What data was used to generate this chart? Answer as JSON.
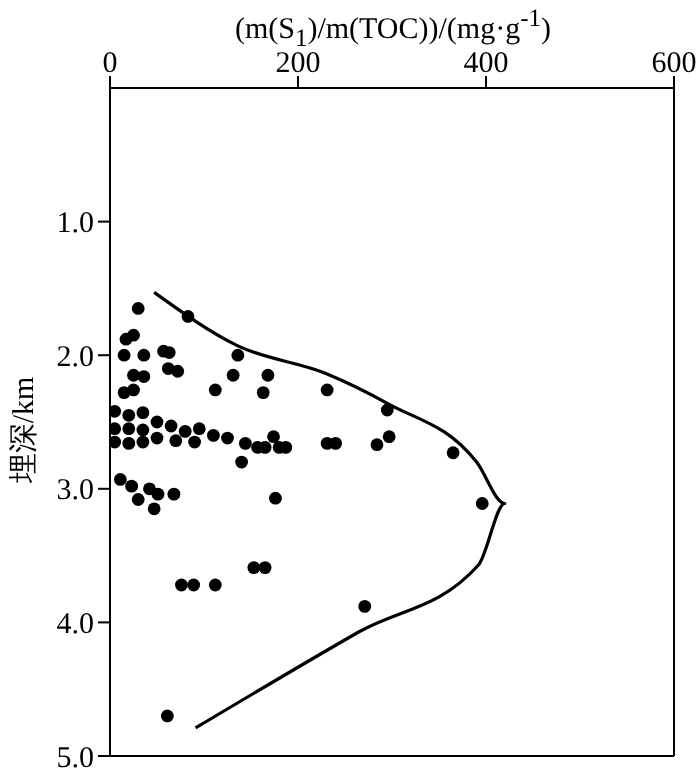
{
  "chart_data": {
    "type": "scatter",
    "xlabel": "(m(S$_{1}$)/m(TOC))/(mg·g$^{-1}$)",
    "ylabel": "埋深/km",
    "xlim": [
      0,
      600
    ],
    "xticks": [
      0,
      200,
      400,
      600
    ],
    "ylim": [
      5,
      0
    ],
    "yticks": [
      {
        "value": 1,
        "label": "1.0"
      },
      {
        "value": 2,
        "label": "2.0"
      },
      {
        "value": 3,
        "label": "3.0"
      },
      {
        "value": 4,
        "label": "4.0"
      },
      {
        "value": 5,
        "label": "5.0"
      }
    ],
    "series": [
      {
        "color": "#000000",
        "marker": "circle",
        "x": [
          30,
          83,
          17,
          25,
          36,
          15,
          57,
          63,
          136,
          62,
          72,
          25,
          36,
          131,
          168,
          15,
          25,
          112,
          163,
          231,
          295,
          297,
          284,
          231,
          240,
          180,
          187,
          157,
          165,
          174,
          140,
          365,
          5,
          20,
          35,
          50,
          5,
          20,
          35,
          65,
          80,
          95,
          110,
          125,
          50,
          5,
          20,
          35,
          70,
          90,
          144,
          11,
          23,
          42,
          51,
          68,
          30,
          176,
          396,
          47,
          76,
          89,
          112,
          153,
          165,
          271,
          61
        ],
        "values": [
          1.65,
          1.71,
          1.88,
          1.85,
          2.0,
          2.0,
          1.97,
          1.98,
          2.0,
          2.1,
          2.12,
          2.15,
          2.16,
          2.15,
          2.15,
          2.28,
          2.26,
          2.26,
          2.28,
          2.26,
          2.41,
          2.61,
          2.67,
          2.66,
          2.66,
          2.69,
          2.69,
          2.69,
          2.69,
          2.61,
          2.8,
          2.73,
          2.42,
          2.45,
          2.43,
          2.5,
          2.55,
          2.55,
          2.56,
          2.53,
          2.57,
          2.55,
          2.6,
          2.62,
          2.62,
          2.65,
          2.66,
          2.65,
          2.64,
          2.65,
          2.66,
          2.93,
          2.98,
          3.0,
          3.04,
          3.04,
          3.08,
          3.07,
          3.11,
          3.15,
          3.72,
          3.72,
          3.72,
          3.59,
          3.59,
          3.88,
          4.7
        ]
      },
      {
        "type": "line",
        "color": "#000000",
        "x": [
          47,
          136,
          231,
          295,
          390,
          420,
          392,
          265,
          91
        ],
        "values": [
          1.53,
          1.93,
          2.14,
          2.36,
          2.8,
          3.11,
          3.57,
          4.07,
          4.79
        ]
      }
    ]
  }
}
